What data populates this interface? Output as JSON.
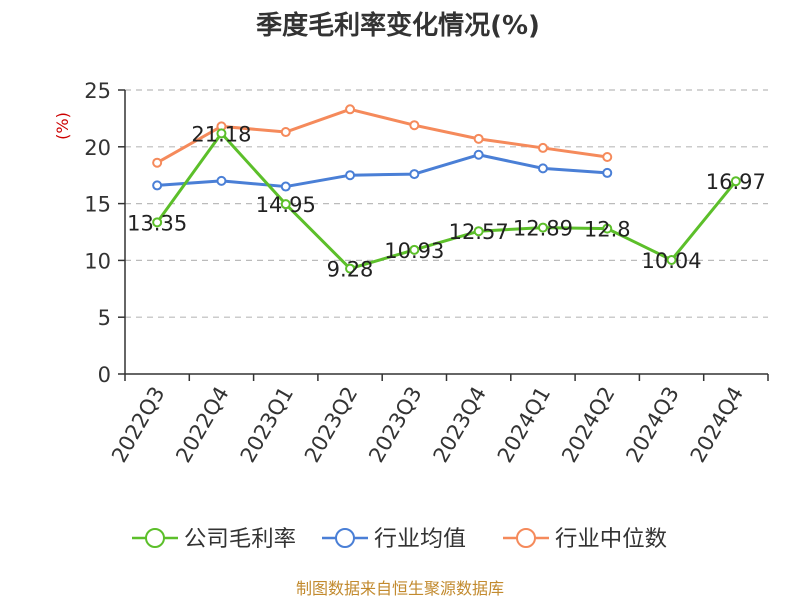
{
  "chart_data": {
    "type": "line",
    "title": "季度毛利率变化情况(%)",
    "ylabel": "(%)",
    "xlabel": "",
    "categories": [
      "2022Q3",
      "2022Q4",
      "2023Q1",
      "2023Q2",
      "2023Q3",
      "2023Q4",
      "2024Q1",
      "2024Q2",
      "2024Q3",
      "2024Q4"
    ],
    "ylim": [
      0,
      25
    ],
    "yticks": [
      0,
      5,
      10,
      15,
      20,
      25
    ],
    "grid": true,
    "legend_position": "bottom",
    "series": [
      {
        "name": "公司毛利率",
        "color": "#5cbf2a",
        "values": [
          13.35,
          21.18,
          14.95,
          9.28,
          10.93,
          12.57,
          12.89,
          12.8,
          10.04,
          16.97
        ],
        "labels": [
          "13.35",
          "21.18",
          "14.95",
          "9.28",
          "10.93",
          "12.57",
          "12.89",
          "12.8",
          "10.04",
          "16.97"
        ]
      },
      {
        "name": "行业均值",
        "color": "#4a7fd6",
        "values": [
          16.6,
          17.0,
          16.5,
          17.5,
          17.6,
          19.3,
          18.1,
          17.7,
          null,
          null
        ]
      },
      {
        "name": "行业中位数",
        "color": "#f58a5b",
        "values": [
          18.6,
          21.8,
          21.3,
          23.3,
          21.9,
          20.7,
          19.9,
          19.1,
          null,
          null
        ]
      }
    ]
  },
  "footer": {
    "source": "制图数据来自恒生聚源数据库"
  }
}
